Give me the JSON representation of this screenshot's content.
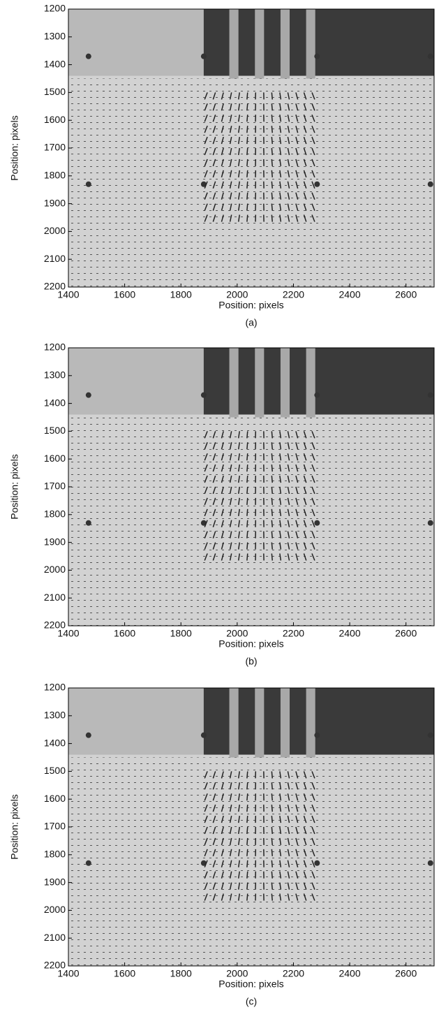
{
  "chart_data": [
    {
      "type": "image",
      "caption": "(a)",
      "xlabel": "Position: pixels",
      "ylabel": "Position: pixels",
      "xlim": [
        1400,
        2700
      ],
      "ylim": [
        1200,
        2200
      ],
      "xticks": [
        1400,
        1600,
        1800,
        2000,
        2200,
        2400,
        2600
      ],
      "yticks": [
        1200,
        1300,
        1400,
        1500,
        1600,
        1700,
        1800,
        1900,
        2000,
        2100,
        2200
      ]
    },
    {
      "type": "image",
      "caption": "(b)",
      "xlabel": "Position: pixels",
      "ylabel": "Position: pixels",
      "xlim": [
        1400,
        2700
      ],
      "ylim": [
        1200,
        2200
      ],
      "xticks": [
        1400,
        1600,
        1800,
        2000,
        2200,
        2400,
        2600
      ],
      "yticks": [
        1200,
        1300,
        1400,
        1500,
        1600,
        1700,
        1800,
        1900,
        2000,
        2100,
        2200
      ]
    },
    {
      "type": "image",
      "caption": "(c)",
      "xlabel": "Position: pixels",
      "ylabel": "Position: pixels",
      "xlim": [
        1400,
        2700
      ],
      "ylim": [
        1200,
        2200
      ],
      "xticks": [
        1400,
        1600,
        1800,
        2000,
        2200,
        2400,
        2600
      ],
      "yticks": [
        1200,
        1300,
        1400,
        1500,
        1600,
        1700,
        1800,
        1900,
        2000,
        2100,
        2200
      ]
    }
  ]
}
